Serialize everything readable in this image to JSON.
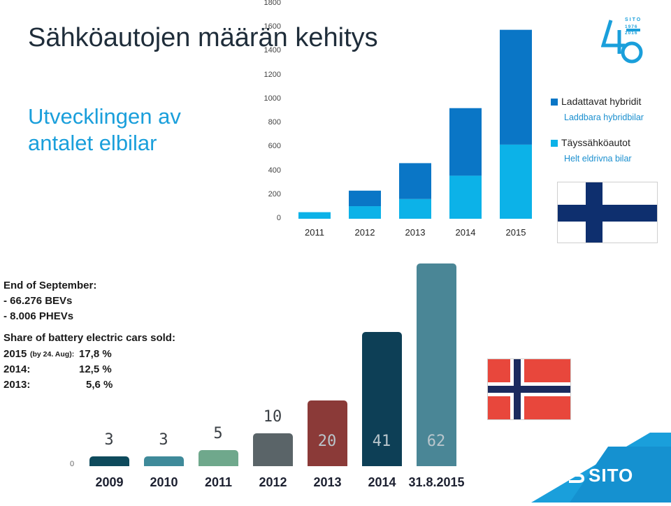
{
  "title": {
    "fi": "Sähköautojen määrän kehitys",
    "sv": "Utvecklingen av antalet elbilar"
  },
  "logo": {
    "sito_text": "SITO",
    "years_text": "1976 2016",
    "anniversary_icon": "sito-40-years-logo-icon",
    "brand_color": "#1a9fdb"
  },
  "footer_logo": {
    "text": "SITO",
    "icon": "sito-logo-icon"
  },
  "colors": {
    "phev": "#0a76c6",
    "bev": "#0cb2e8",
    "finland_blue": "#0e2f6e",
    "norway_red": "#e8473c",
    "norway_blue": "#1b2a5e"
  },
  "chart_data": [
    {
      "type": "bar",
      "stacked": true,
      "country": "Finland",
      "categories": [
        "2011",
        "2012",
        "2013",
        "2014",
        "2015"
      ],
      "series": [
        {
          "name": "Täyssähköautot",
          "name_sv": "Helt eldrivna bilar",
          "values": [
            55,
            105,
            165,
            360,
            620
          ]
        },
        {
          "name": "Ladattavat hybridit",
          "name_sv": "Laddbara hybridbilar",
          "values": [
            0,
            130,
            300,
            565,
            960
          ]
        }
      ],
      "yticks": [
        "0",
        "200",
        "400",
        "600",
        "800",
        "1000",
        "1200",
        "1400",
        "1600",
        "1800"
      ],
      "ylim": [
        0,
        1800
      ],
      "legend_position": "right",
      "grid": false
    },
    {
      "type": "bar",
      "country": "Norway",
      "categories": [
        "2009",
        "2010",
        "2011",
        "2012",
        "2013",
        "2014",
        "31.8.2015"
      ],
      "values": [
        3,
        3,
        5,
        10,
        20,
        41,
        62
      ],
      "value_labels": [
        "3",
        "3",
        "5",
        "10",
        "20",
        "41",
        "62"
      ],
      "colors": [
        "#0e4a5c",
        "#3f8a9a",
        "#6fa88c",
        "#5a6468",
        "#8b3a38",
        "#0d3f56",
        "#4a8696"
      ],
      "ytick": "0",
      "ylim": [
        0,
        62
      ],
      "annotations": [
        "End of September:",
        "- 66.276 BEVs",
        "- 8.006 PHEVs",
        "Share of battery electric cars sold:",
        "2015",
        "(by 24. Aug):",
        "17,8 %",
        "2014:",
        "12,5 %",
        "2013:",
        "5,6 %"
      ]
    }
  ]
}
